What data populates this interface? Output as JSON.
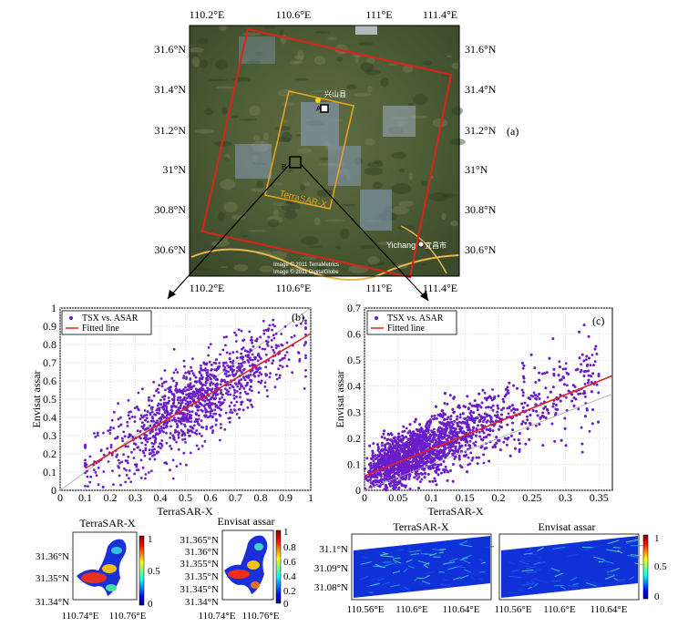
{
  "map": {
    "panel_label": "(a)",
    "lon_ticks": [
      "110.2°E",
      "110.6°E",
      "111°E",
      "111.4°E"
    ],
    "lat_ticks": [
      "31.6°N",
      "31.4°N",
      "31.2°N",
      "31°N",
      "30.8°N",
      "30.6°N"
    ],
    "labels": {
      "terrasar": "TerraSAR-X",
      "point_a": "A",
      "point_b": "B",
      "city": "Yichang",
      "city_cn": "宜昌市",
      "county_cn": "兴山县"
    },
    "credits": [
      "Image © 2011 TerraMetrics",
      "Image © 2011 DigitalGlobe"
    ],
    "colors": {
      "envisat_frame": "#e0201b",
      "terrasar_frame": "#e8a020"
    }
  },
  "chart_data": [
    {
      "type": "scatter",
      "panel_label": "(b)",
      "xlabel": "TerraSAR-X",
      "ylabel": "Envisat assar",
      "xlim": [
        0,
        1
      ],
      "ylim": [
        0,
        1
      ],
      "xticks": [
        0,
        0.1,
        0.2,
        0.3,
        0.4,
        0.5,
        0.6,
        0.7,
        0.8,
        0.9,
        1
      ],
      "yticks": [
        0,
        0.1,
        0.2,
        0.3,
        0.4,
        0.5,
        0.6,
        0.7,
        0.8,
        0.9,
        1
      ],
      "grid": true,
      "legend": {
        "placement": "top-left",
        "entries": [
          "TSX vs. ASAR",
          "Fitted line"
        ]
      },
      "series": [
        {
          "name": "TSX vs. ASAR",
          "kind": "points",
          "color": "#6a1ec8",
          "approx_count": 1200,
          "cloud": {
            "x_range": [
              0.1,
              0.98
            ],
            "trend_slope": 0.82,
            "trend_intercept": 0.04,
            "spread": 0.11
          }
        },
        {
          "name": "Fitted line",
          "kind": "line",
          "color": "#e32020",
          "x": [
            0.1,
            1.0
          ],
          "y": [
            0.12,
            0.86
          ]
        }
      ],
      "reference_line": {
        "x": [
          0,
          1
        ],
        "y": [
          0,
          1
        ]
      }
    },
    {
      "type": "scatter",
      "panel_label": "(c)",
      "xlabel": "TerraSAR-X",
      "ylabel": "Envisat assar",
      "xlim": [
        0,
        0.37
      ],
      "ylim": [
        0,
        0.7
      ],
      "xticks": [
        0,
        0.05,
        0.1,
        0.15,
        0.2,
        0.25,
        0.3,
        0.35
      ],
      "yticks": [
        0,
        0.1,
        0.2,
        0.3,
        0.4,
        0.5,
        0.6,
        0.7
      ],
      "grid": true,
      "legend": {
        "placement": "top-left",
        "entries": [
          "TSX vs. ASAR",
          "Fitted line"
        ]
      },
      "series": [
        {
          "name": "TSX vs. ASAR",
          "kind": "points",
          "color": "#6a1ec8",
          "approx_count": 5000,
          "cloud": {
            "x_range": [
              0,
              0.35
            ],
            "trend_slope": 1.05,
            "trend_intercept": 0.06,
            "spread": 0.07
          }
        },
        {
          "name": "Fitted line",
          "kind": "line",
          "color": "#e32020",
          "x": [
            0,
            0.37
          ],
          "y": [
            0.055,
            0.44
          ]
        }
      ],
      "reference_line": {
        "x": [
          0,
          0.37
        ],
        "y": [
          0,
          0.37
        ]
      }
    },
    {
      "type": "heatmap",
      "title": "TerraSAR-X",
      "region": "A",
      "x_ticks": [
        "110.74°E",
        "110.76°E"
      ],
      "y_ticks": [
        "31.36°N",
        "31.35°N",
        "31.34°N"
      ],
      "colorbar": {
        "ticks": [
          "1",
          "0.5",
          "0"
        ],
        "range": [
          0,
          1
        ]
      }
    },
    {
      "type": "heatmap",
      "title": "Envisat assar",
      "region": "A",
      "x_ticks": [
        "110.74°E",
        "110.76°E"
      ],
      "y_ticks": [
        "31.365°N",
        "31.36°N",
        "31.355°N",
        "31.35°N",
        "31.345°N",
        "31.34°N"
      ],
      "colorbar": {
        "ticks": [
          "1",
          "0.8",
          "0.6",
          "0.4",
          "0.2",
          "0"
        ],
        "range": [
          0,
          1
        ]
      }
    },
    {
      "type": "heatmap",
      "title": "TerraSAR-X",
      "region": "B",
      "x_ticks": [
        "110.56°E",
        "110.6°E",
        "110.64°E"
      ],
      "y_ticks": [
        "31.1°N",
        "31.09°N",
        "31.08°N"
      ]
    },
    {
      "type": "heatmap",
      "title": "Envisat assar",
      "region": "B",
      "x_ticks": [
        "110.56°E",
        "110.6°E",
        "110.64°E"
      ],
      "y_ticks": [],
      "colorbar": {
        "ticks": [
          "1",
          "0.5",
          "0"
        ],
        "range": [
          0,
          1
        ]
      }
    }
  ]
}
